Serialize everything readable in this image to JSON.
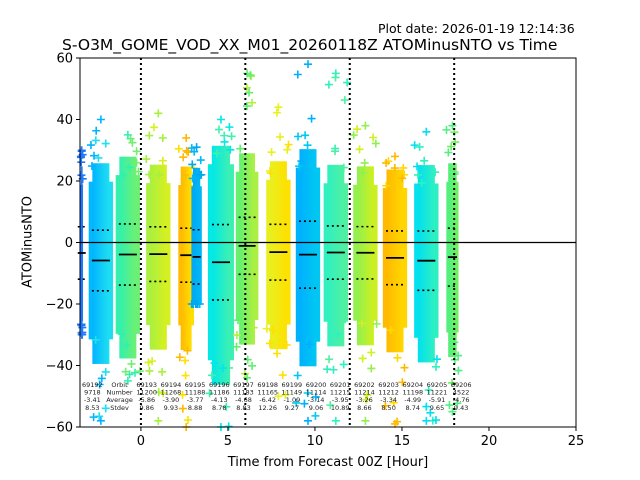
{
  "plot_date": "Plot date: 2026-01-19 12:14:36",
  "chart_data": {
    "type": "scatter",
    "title": "S-O3M_GOME_VOD_XX_M01_20260118Z ATOMinusNTO vs Time",
    "xlabel": "Time from Forecast 00Z [Hour]",
    "ylabel": "ATOMinusNTO",
    "xlim": [
      -3.5,
      25
    ],
    "ylim": [
      -60,
      60
    ],
    "xticks": [
      0,
      5,
      10,
      15,
      20,
      25
    ],
    "yticks": [
      -60,
      -40,
      -20,
      0,
      20,
      40,
      60
    ],
    "grid": false,
    "reference_lines": {
      "horizontal_zero": 0,
      "vertical_dotted_hours": [
        0,
        6,
        12,
        18
      ]
    },
    "stats_header": [
      "Orbit",
      "Number",
      "Average",
      "Stdev"
    ],
    "orbits": [
      {
        "orbit": "69192",
        "number": "9718",
        "average": -3.41,
        "stdev": 8.53,
        "x_center": -3.4,
        "x_width": 0.15,
        "y_top": 30,
        "y_bottom": -30,
        "color_a": "#1e78ff",
        "color_b": "#1e78ff"
      },
      {
        "orbit": "69193",
        "number": "11200",
        "average": -5.86,
        "stdev": 9.86,
        "x_center": -2.3,
        "x_width": 1.4,
        "y_top": 40,
        "y_bottom": -58,
        "color_a": "#00b4ff",
        "color_b": "#20e0f0"
      },
      {
        "orbit": "69194",
        "number": "11268",
        "average": -3.9,
        "stdev": 9.93,
        "x_center": -0.75,
        "x_width": 1.4,
        "y_top": 35,
        "y_bottom": -45,
        "color_a": "#30f0b0",
        "color_b": "#70f070"
      },
      {
        "orbit": "69195",
        "number": "11188",
        "average": -3.77,
        "stdev": 8.88,
        "x_center": 1.0,
        "x_width": 1.4,
        "y_top": 42,
        "y_bottom": -58,
        "color_a": "#a8f040",
        "color_b": "#d8f020"
      },
      {
        "orbit": "69196",
        "number": "11186",
        "average": -4.13,
        "stdev": 8.78,
        "x_center": 2.6,
        "x_width": 0.9,
        "y_top": 34,
        "y_bottom": -60,
        "color_a": "#ffb800",
        "color_b": "#ffe000"
      },
      {
        "orbit": "69197",
        "number": "11183",
        "average": -4.68,
        "stdev": 8.83,
        "x_center": 3.2,
        "x_width": 0.6,
        "y_top": 31,
        "y_bottom": -20,
        "color_a": "#00a8f0",
        "color_b": "#00b8f8"
      },
      {
        "orbit": "69198",
        "number": "11165",
        "average": -6.42,
        "stdev": 12.26,
        "x_center": 4.6,
        "x_width": 1.5,
        "y_top": 40,
        "y_bottom": -60,
        "color_a": "#00e8e8",
        "color_b": "#40f0b0"
      },
      {
        "orbit": "69199",
        "number": "11149",
        "average": -1.09,
        "stdev": 9.27,
        "x_center": 6.1,
        "x_width": 1.3,
        "y_top": 55,
        "y_bottom": -44,
        "color_a": "#60f070",
        "color_b": "#b0f040"
      },
      {
        "orbit": "69200",
        "number": "11114",
        "average": -3.14,
        "stdev": 9.06,
        "x_center": 7.9,
        "x_width": 1.4,
        "y_top": 44,
        "y_bottom": -50,
        "color_a": "#e8f020",
        "color_b": "#ffe000"
      },
      {
        "orbit": "69201",
        "number": "11215",
        "average": -3.95,
        "stdev": 10.89,
        "x_center": 9.6,
        "x_width": 1.4,
        "y_top": 58,
        "y_bottom": -58,
        "color_a": "#00b0ff",
        "color_b": "#00c8f0"
      },
      {
        "orbit": "69202",
        "number": "11214",
        "average": -3.26,
        "stdev": 8.66,
        "x_center": 11.2,
        "x_width": 1.4,
        "y_top": 55,
        "y_bottom": -58,
        "color_a": "#30f0c0",
        "color_b": "#50f0a0"
      },
      {
        "orbit": "69203",
        "number": "11212",
        "average": -3.34,
        "stdev": 8.5,
        "x_center": 12.9,
        "x_width": 1.4,
        "y_top": 38,
        "y_bottom": -58,
        "color_a": "#90f050",
        "color_b": "#d0f020"
      },
      {
        "orbit": "69204",
        "number": "11198",
        "average": -4.99,
        "stdev": 8.74,
        "x_center": 14.6,
        "x_width": 1.4,
        "y_top": 28,
        "y_bottom": -59,
        "color_a": "#ffb800",
        "color_b": "#ffd800"
      },
      {
        "orbit": "69205",
        "number": "11221",
        "average": -5.91,
        "stdev": 9.65,
        "x_center": 16.4,
        "x_width": 1.4,
        "y_top": 36,
        "y_bottom": -58,
        "color_a": "#00e0f0",
        "color_b": "#30f0c0"
      },
      {
        "orbit": "69206",
        "number": "4522",
        "average": -4.76,
        "stdev": 9.43,
        "x_center": 17.9,
        "x_width": 0.7,
        "y_top": 38,
        "y_bottom": -55,
        "color_a": "#50f080",
        "color_b": "#70f060"
      }
    ]
  }
}
